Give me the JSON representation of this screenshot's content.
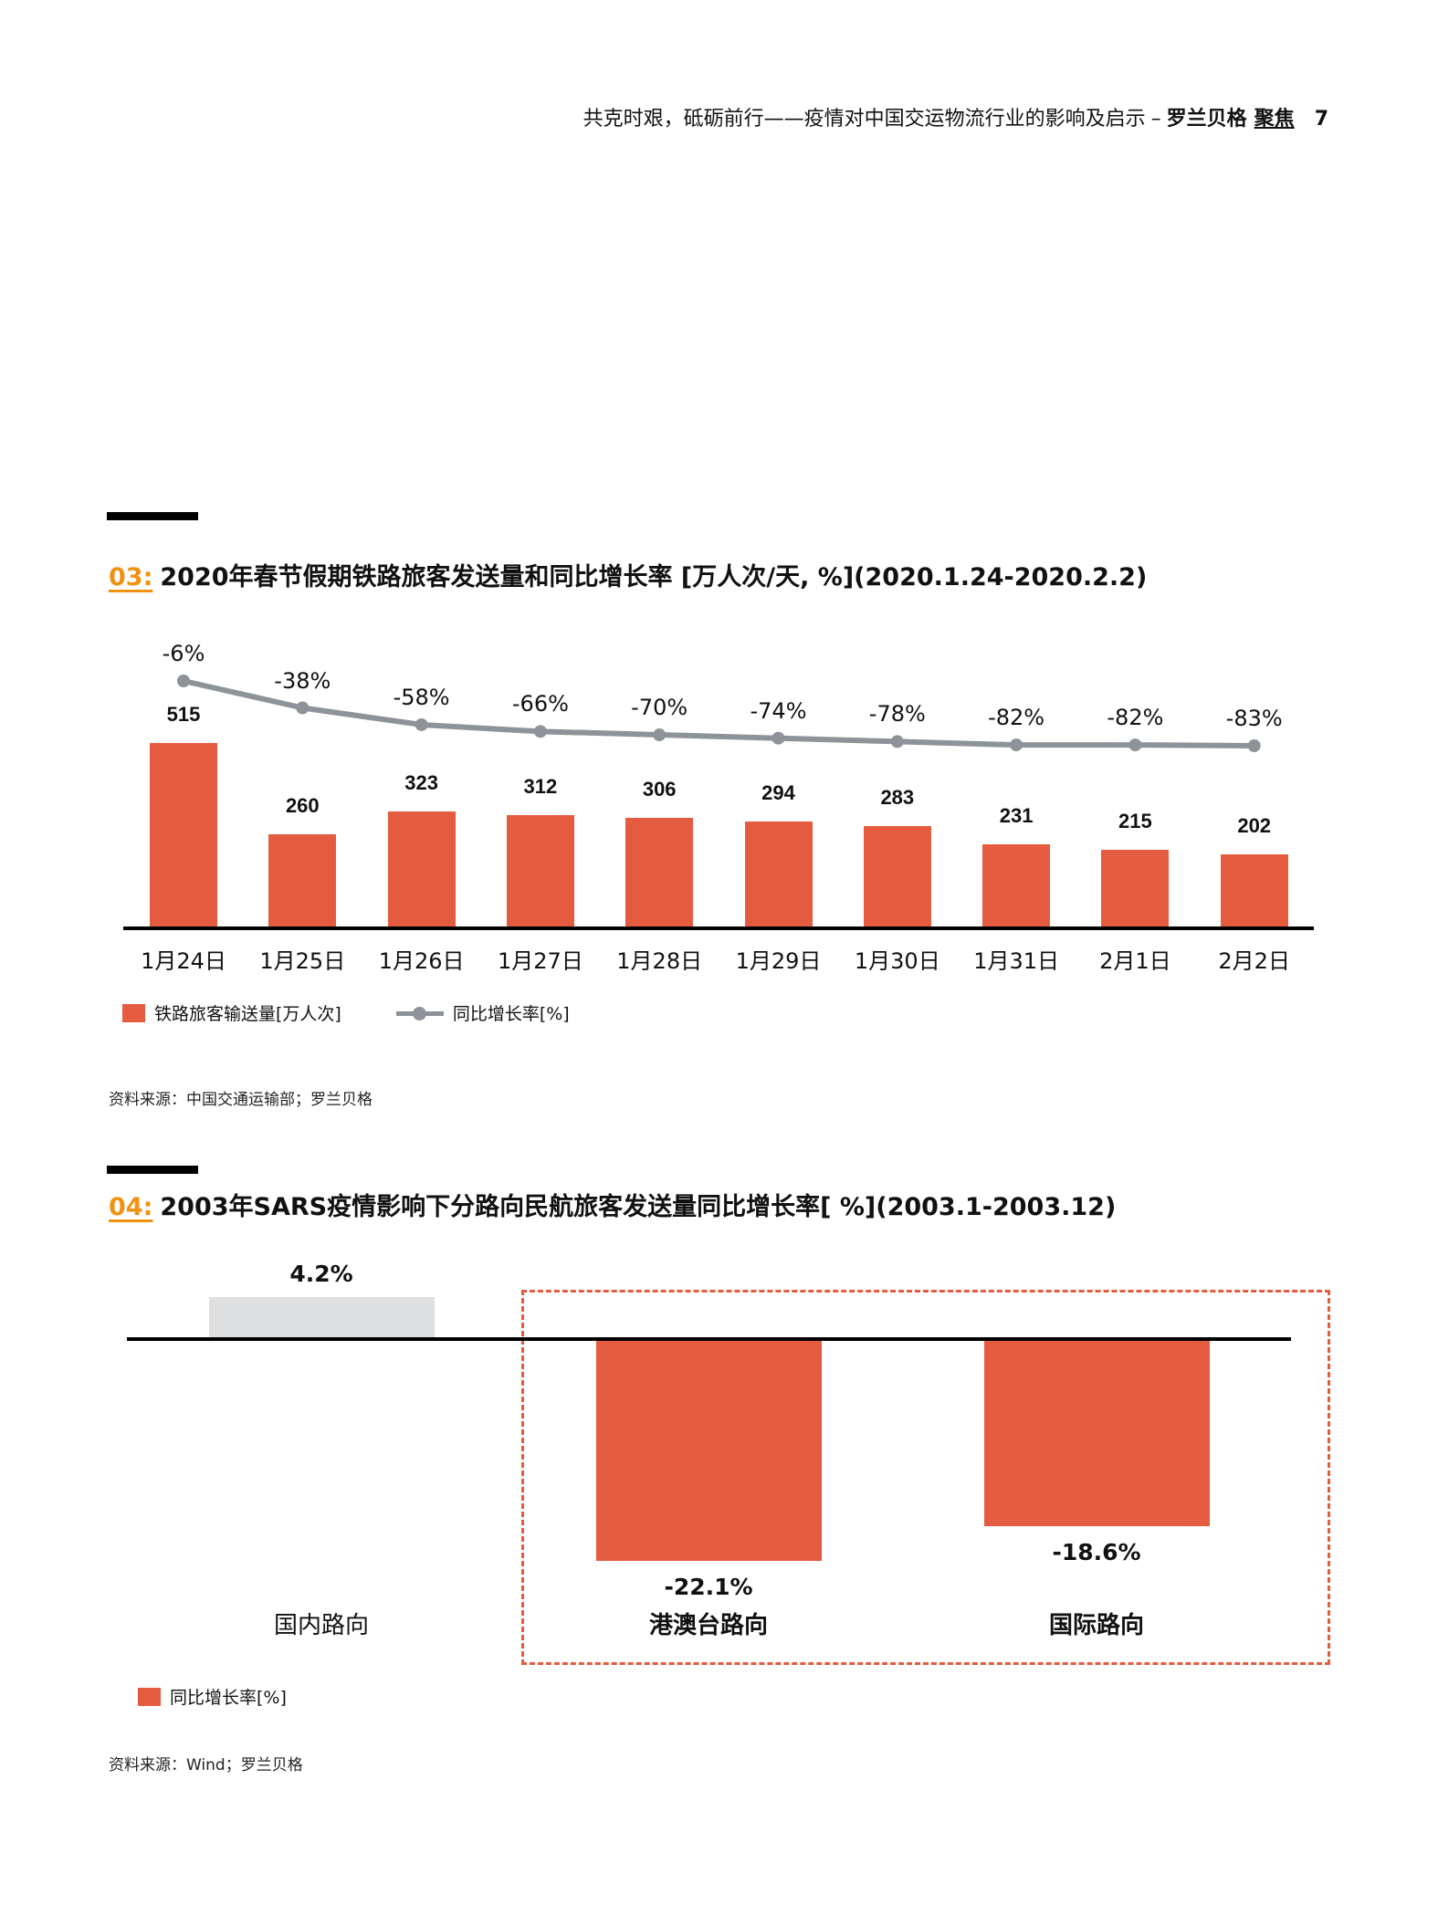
{
  "header": {
    "subtitle": "共克时艰，砥砺前行——疫情对中国交运物流行业的影响及启示",
    "dash": "–",
    "brand": "罗兰贝格",
    "focus": "聚焦",
    "page": "7"
  },
  "colors": {
    "bar": "#E55B40",
    "line": "#8E9399",
    "gray_bar": "#DEDFE1",
    "accent": "#F0920F"
  },
  "chart1": {
    "number": "03:",
    "title": "2020年春节假期铁路旅客发送量和同比增长率 [万人次/天, %](2020.1.24-2020.2.2)",
    "legend_bar": "铁路旅客输送量[万人次]",
    "legend_line": "同比增长率[%]",
    "source": "资料来源：中国交通运输部；罗兰贝格"
  },
  "chart2": {
    "number": "04:",
    "title": "2003年SARS疫情影响下分路向民航旅客发送量同比增长率[ %](2003.1-2003.12)",
    "legend": "同比增长率[%]",
    "source": "资料来源：Wind；罗兰贝格"
  },
  "chart_data": [
    {
      "type": "bar",
      "title": "2020年春节假期铁路旅客发送量和同比增长率 [万人次/天, %](2020.1.24-2020.2.2)",
      "categories": [
        "1月24日",
        "1月25日",
        "1月26日",
        "1月27日",
        "1月28日",
        "1月29日",
        "1月30日",
        "1月31日",
        "2月1日",
        "2月2日"
      ],
      "series": [
        {
          "name": "铁路旅客输送量[万人次]",
          "type": "bar",
          "values": [
            515,
            260,
            323,
            312,
            306,
            294,
            283,
            231,
            215,
            202
          ],
          "labels": [
            "515",
            "260",
            "323",
            "312",
            "306",
            "294",
            "283",
            "231",
            "215",
            "202"
          ]
        },
        {
          "name": "同比增长率[%]",
          "type": "line",
          "values": [
            -6,
            -38,
            -58,
            -66,
            -70,
            -74,
            -78,
            -82,
            -82,
            -83
          ],
          "labels": [
            "-6%",
            "-38%",
            "-58%",
            "-66%",
            "-70%",
            "-74%",
            "-78%",
            "-82%",
            "-82%",
            "-83%"
          ]
        }
      ],
      "xlabel": "",
      "ylabel": "",
      "grid": false,
      "legend_position": "bottom-left"
    },
    {
      "type": "bar",
      "title": "2003年SARS疫情影响下分路向民航旅客发送量同比增长率[ %](2003.1-2003.12)",
      "categories": [
        "国内路向",
        "港澳台路向",
        "国际路向"
      ],
      "series": [
        {
          "name": "同比增长率[%]",
          "values": [
            4.2,
            -22.1,
            -18.6
          ],
          "labels": [
            "4.2%",
            "-22.1%",
            "-18.6%"
          ]
        }
      ],
      "highlight": [
        "港澳台路向",
        "国际路向"
      ],
      "xlabel": "",
      "ylabel": "",
      "grid": false,
      "legend_position": "bottom-left"
    }
  ]
}
